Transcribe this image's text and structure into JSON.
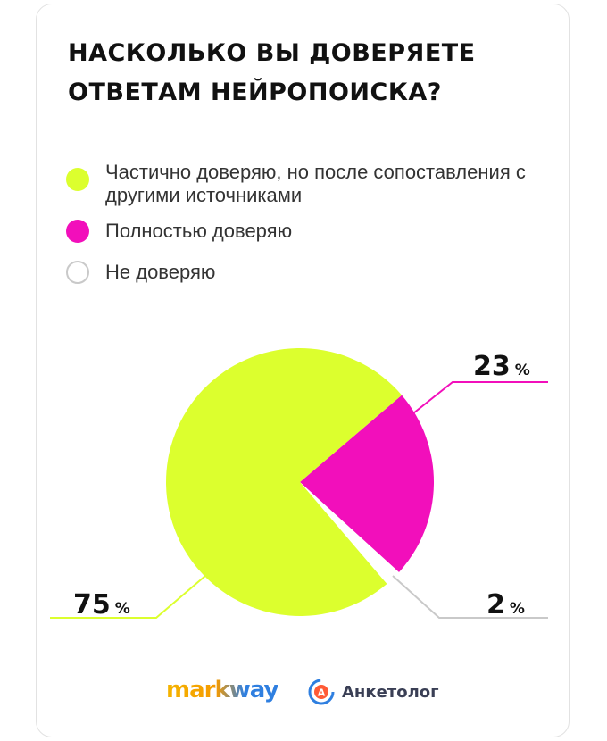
{
  "title": "НАСКОЛЬКО ВЫ ДОВЕРЯЕТЕ ОТВЕТАМ НЕЙРОПОИСКА?",
  "colors": {
    "partial": "#dcff2e",
    "full": "#f20fbb",
    "none": "#ffffff",
    "none_border": "#c9c9c9"
  },
  "chart_data": {
    "type": "pie",
    "title": "НАСКОЛЬКО ВЫ ДОВЕРЯЕТЕ ОТВЕТАМ НЕЙРОПОИСКА?",
    "slices": [
      {
        "label": "Частично доверяю, но после сопоставления с другими источниками",
        "value": 75,
        "color": "#dcff2e"
      },
      {
        "label": "Полностью доверяю",
        "value": 23,
        "color": "#f20fbb"
      },
      {
        "label": "Не доверяю",
        "value": 2,
        "color": "#ffffff"
      }
    ],
    "legend_position": "top-left",
    "data_labels": [
      {
        "value": "75",
        "unit": "%"
      },
      {
        "value": "23",
        "unit": "%"
      },
      {
        "value": "2",
        "unit": "%"
      }
    ]
  },
  "legend": [
    {
      "label": "Частично доверяю, но после сопоставления с другими источниками"
    },
    {
      "label": "Полностью доверяю"
    },
    {
      "label": "Не доверяю"
    }
  ],
  "logos": {
    "markway": "markway",
    "anketolog": "Анкетолог",
    "anketolog_badge_letter": "А"
  }
}
